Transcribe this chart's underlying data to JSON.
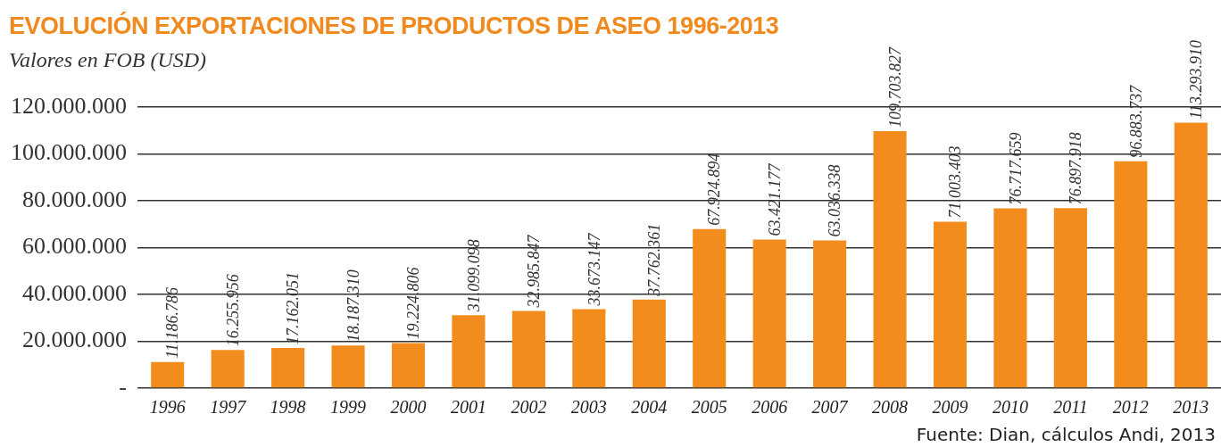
{
  "chart_data": {
    "type": "bar",
    "title": "EVOLUCIÓN EXPORTACIONES DE PRODUCTOS DE ASEO 1996-2013",
    "subtitle": "Valores en FOB (USD)",
    "categories": [
      "1996",
      "1997",
      "1998",
      "1999",
      "2000",
      "2001",
      "2002",
      "2003",
      "2004",
      "2005",
      "2006",
      "2007",
      "2008",
      "2009",
      "2010",
      "2011",
      "2012",
      "2013"
    ],
    "values": [
      11186786,
      16255956,
      17162051,
      18187310,
      19224806,
      31099098,
      32985847,
      33673147,
      37762361,
      67924894,
      63421177,
      63036338,
      109703827,
      71003403,
      76717659,
      76897918,
      96883737,
      113293910
    ],
    "value_labels": [
      "11.186.786",
      "16.255.956",
      "17.162.051",
      "18.187.310",
      "19.224.806",
      "31.099.098",
      "32.985.847",
      "33.673.147",
      "37.762.361",
      "67.924.894",
      "63.421.177",
      "63.036.338",
      "109.703.827",
      "71.003.403",
      "76.717.659",
      "76.897.918",
      "96.883.737",
      "113.293.910"
    ],
    "color": "#f28c1c",
    "ylim": [
      0,
      120000000
    ],
    "yticks": [
      {
        "value": 0,
        "label": "-"
      },
      {
        "value": 20000000,
        "label": "20.000.000"
      },
      {
        "value": 40000000,
        "label": "40.000.000"
      },
      {
        "value": 60000000,
        "label": "60.000.000"
      },
      {
        "value": 80000000,
        "label": "80.000.000"
      },
      {
        "value": 100000000,
        "label": "100.000.000"
      },
      {
        "value": 120000000,
        "label": "120.000.000"
      }
    ],
    "grid": "y",
    "annotations": [
      "Fuente: Dian, cálculos Andi, 2013"
    ]
  }
}
